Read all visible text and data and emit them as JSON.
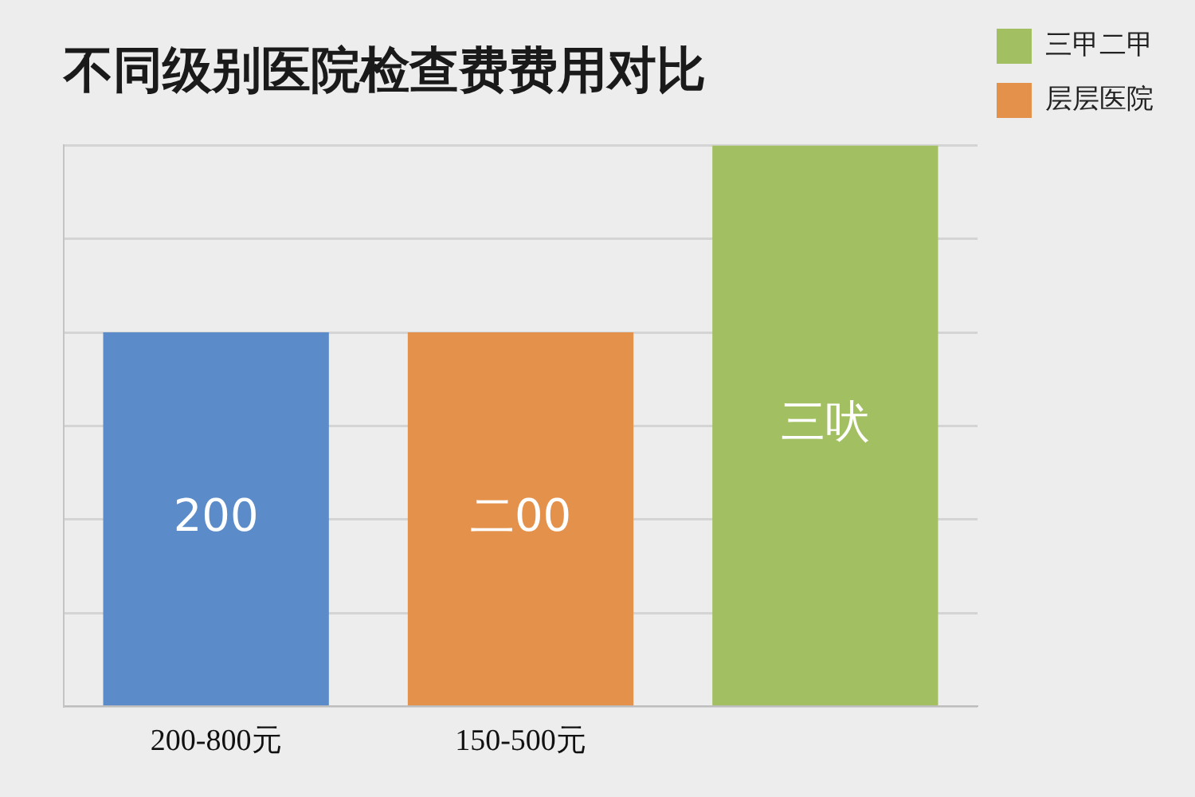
{
  "chart_data": {
    "type": "bar",
    "title": "不同级别医院检查费费用对比",
    "categories": [
      "200-800元",
      "150-500元",
      null
    ],
    "series": [
      {
        "color": "#5b8bc8",
        "values": [
          200,
          null,
          null
        ],
        "value_labels": [
          "200",
          null,
          null
        ]
      },
      {
        "name": "三甲二甲",
        "color": "#a2c062",
        "values": [
          null,
          null,
          300
        ],
        "value_labels": [
          null,
          null,
          "三吠"
        ]
      },
      {
        "name": "层层医院",
        "color": "#e4914b",
        "values": [
          null,
          200,
          null
        ],
        "value_labels": [
          null,
          "二00",
          null
        ]
      }
    ],
    "grid": "y",
    "legend": "top right",
    "tick_labels": "x"
  }
}
